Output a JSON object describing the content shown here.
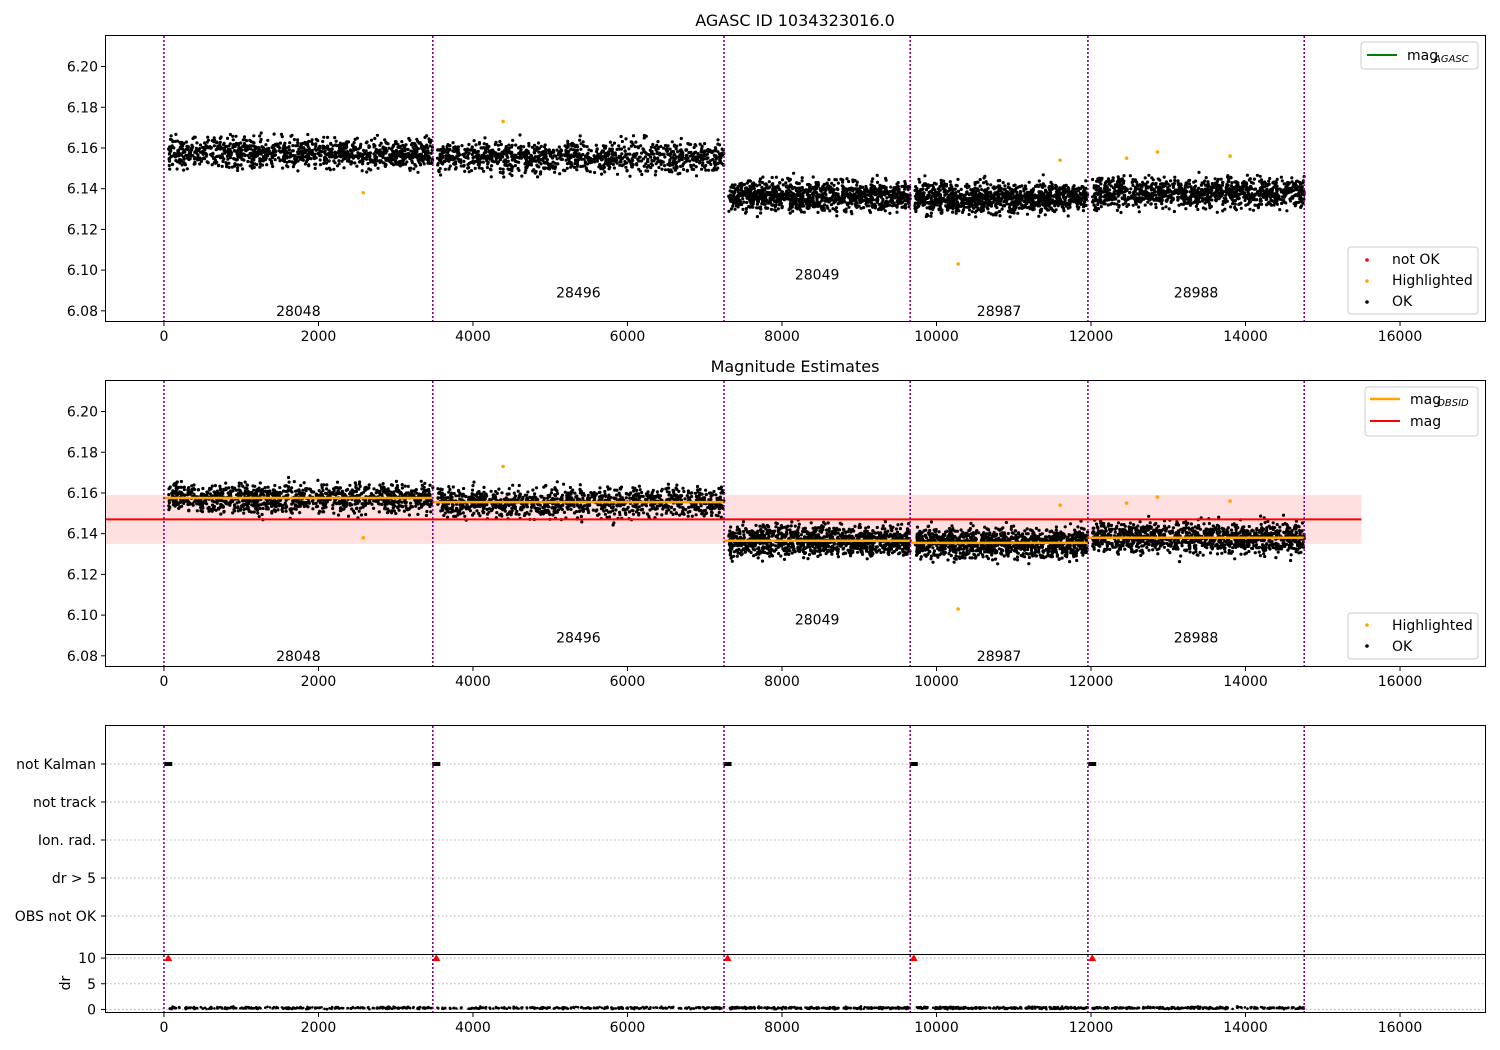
{
  "chart_data": [
    {
      "type": "scatter",
      "title": "AGASC ID 1034323016.0",
      "xlim": [
        -750,
        17100
      ],
      "ylim": [
        6.075,
        6.215
      ],
      "xticks": [
        0,
        2000,
        4000,
        6000,
        8000,
        10000,
        12000,
        14000,
        16000
      ],
      "xtick_labels": [
        "0",
        "2000",
        "4000",
        "6000",
        "8000",
        "10000",
        "12000",
        "14000",
        "16000"
      ],
      "yticks": [
        6.08,
        6.1,
        6.12,
        6.14,
        6.16,
        6.18,
        6.2
      ],
      "ytick_labels": [
        "6.08",
        "6.10",
        "6.12",
        "6.14",
        "6.16",
        "6.18",
        "6.20"
      ],
      "obsid_boundaries": [
        0,
        3480,
        7250,
        9660,
        11960,
        14760
      ],
      "observations": [
        {
          "obsid": "28048",
          "x_start": 0,
          "x_end": 3480,
          "mean": 6.1575,
          "spread": 0.0095,
          "label_y": 6.0775
        },
        {
          "obsid": "28496",
          "x_start": 3480,
          "x_end": 7250,
          "mean": 6.1555,
          "spread": 0.0095,
          "label_y": 6.0865
        },
        {
          "obsid": "28049",
          "x_start": 7250,
          "x_end": 9660,
          "mean": 6.1365,
          "spread": 0.0095,
          "label_y": 6.0955
        },
        {
          "obsid": "28987",
          "x_start": 9660,
          "x_end": 11960,
          "mean": 6.1355,
          "spread": 0.0095,
          "label_y": 6.0775
        },
        {
          "obsid": "28988",
          "x_start": 11960,
          "x_end": 14760,
          "mean": 6.138,
          "spread": 0.0095,
          "label_y": 6.0865
        }
      ],
      "highlighted_points": [
        [
          2580,
          6.138
        ],
        [
          4390,
          6.173
        ],
        [
          10280,
          6.103
        ],
        [
          11600,
          6.154
        ],
        [
          12460,
          6.155
        ],
        [
          12860,
          6.158
        ],
        [
          13800,
          6.156
        ]
      ],
      "series_colors": {
        "not_ok": "#ff0000",
        "highlighted": "#ffa500",
        "ok": "#000000",
        "mag_agasc": "#008000"
      },
      "legend_top": [
        {
          "label": "mag",
          "sub": "AGASC",
          "color": "#008000"
        }
      ],
      "legend_bottom": [
        {
          "label": "not OK",
          "color": "#ff0000"
        },
        {
          "label": "Highlighted",
          "color": "#ffa500"
        },
        {
          "label": "OK",
          "color": "#000000"
        }
      ]
    },
    {
      "type": "scatter",
      "title": "Magnitude Estimates",
      "xlim": [
        -750,
        17100
      ],
      "ylim": [
        6.075,
        6.215
      ],
      "xticks": [
        0,
        2000,
        4000,
        6000,
        8000,
        10000,
        12000,
        14000,
        16000
      ],
      "xtick_labels": [
        "0",
        "2000",
        "4000",
        "6000",
        "8000",
        "10000",
        "12000",
        "14000",
        "16000"
      ],
      "yticks": [
        6.08,
        6.1,
        6.12,
        6.14,
        6.16,
        6.18,
        6.2
      ],
      "ytick_labels": [
        "6.08",
        "6.10",
        "6.12",
        "6.14",
        "6.16",
        "6.18",
        "6.20"
      ],
      "mag": 6.147,
      "mag_band": [
        6.135,
        6.159
      ],
      "mag_line_x": [
        -750,
        15500
      ],
      "obsid_mags": [
        6.1575,
        6.1555,
        6.1365,
        6.1355,
        6.138
      ],
      "legend_top": [
        {
          "label": "mag",
          "sub": "OBSID",
          "color": "#ffa500"
        },
        {
          "label": "mag",
          "sub": "",
          "color": "#ff0000"
        }
      ],
      "legend_bottom": [
        {
          "label": "Highlighted",
          "color": "#ffa500"
        },
        {
          "label": "OK",
          "color": "#000000"
        }
      ]
    },
    {
      "type": "scatter",
      "title": "",
      "flag_rows": [
        "not Kalman",
        "not track",
        "Ion. rad.",
        "dr > 5",
        "OBS not OK"
      ],
      "not_kalman_x": [
        30,
        3500,
        7270,
        9680,
        11990
      ]
    },
    {
      "type": "scatter",
      "title": "",
      "ylabel": "dr",
      "ylim": [
        -0.5,
        10.6
      ],
      "yticks": [
        0,
        5,
        10
      ],
      "ytick_labels": [
        "0",
        "5",
        "10"
      ],
      "xticks": [
        0,
        2000,
        4000,
        6000,
        8000,
        10000,
        12000,
        14000,
        16000
      ],
      "xtick_labels": [
        "0",
        "2000",
        "4000",
        "6000",
        "8000",
        "10000",
        "12000",
        "14000",
        "16000"
      ],
      "dr_clipped_x": [
        30,
        3500,
        7270,
        9680,
        11990
      ],
      "dr_typical": 0.3
    }
  ]
}
